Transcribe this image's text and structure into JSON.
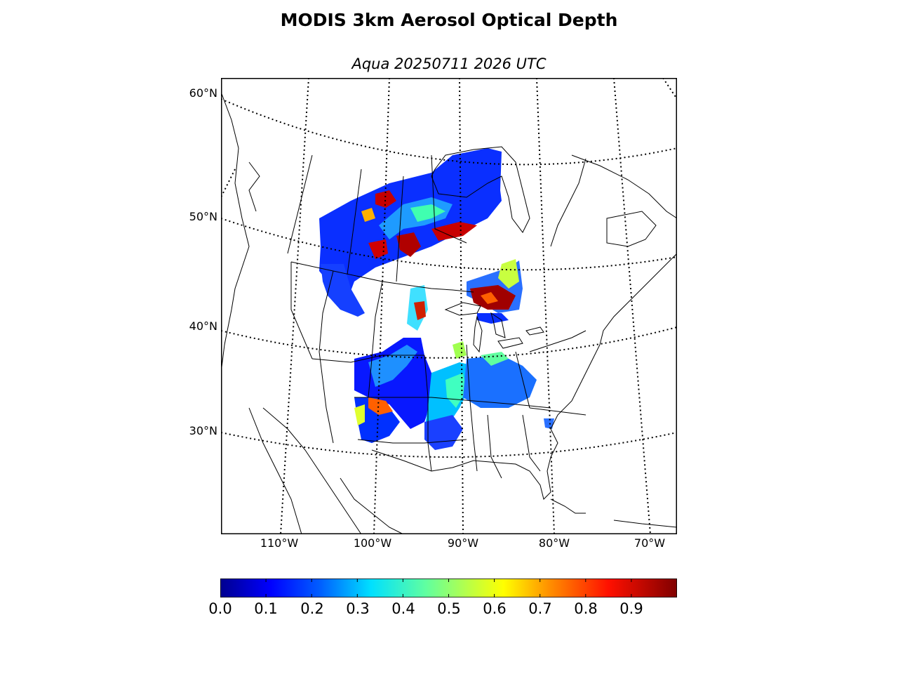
{
  "title": "MODIS 3km Aerosol Optical Depth",
  "subtitle": "Aqua 20250711 2026 UTC",
  "map": {
    "projection": "lambert conformal",
    "region": "North America",
    "lat_labels": [
      "60°N",
      "50°N",
      "40°N",
      "30°N"
    ],
    "lon_labels": [
      "110°W",
      "100°W",
      "90°W",
      "80°W",
      "70°W"
    ],
    "graticule_style": "dotted",
    "coastline_color": "#000000"
  },
  "colorbar": {
    "colormap": "jet",
    "min": 0.0,
    "max": 1.0,
    "tick_labels": [
      "0.0",
      "0.1",
      "0.2",
      "0.3",
      "0.4",
      "0.5",
      "0.6",
      "0.7",
      "0.8",
      "0.9"
    ],
    "colors": [
      "#00008f",
      "#0000ff",
      "#0080ff",
      "#00ffff",
      "#80ff80",
      "#ffff00",
      "#ff8000",
      "#ff0000",
      "#800000"
    ]
  }
}
